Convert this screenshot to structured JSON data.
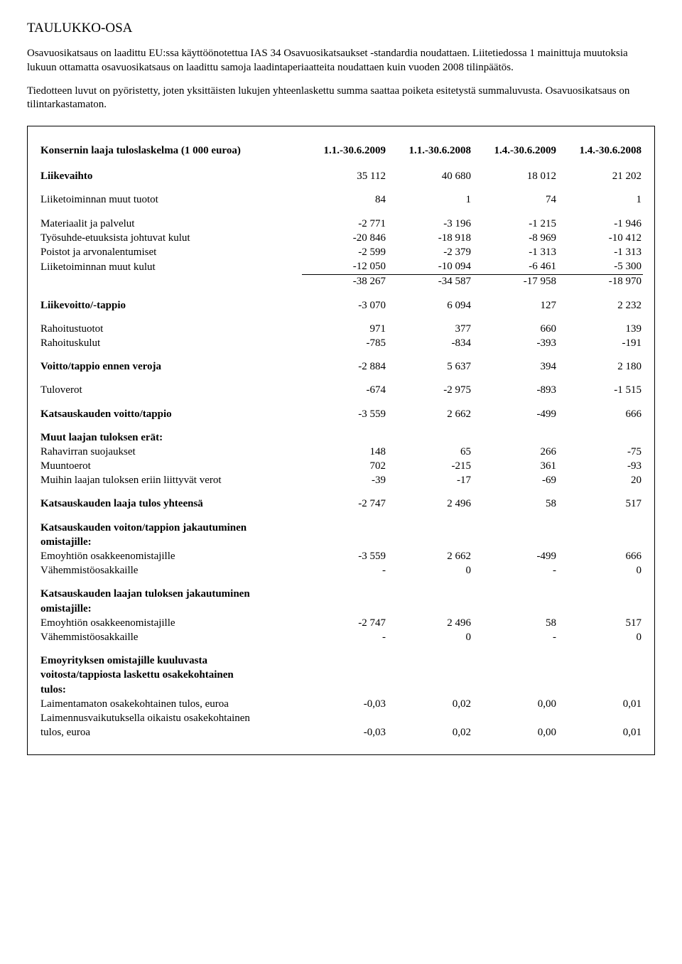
{
  "title": "TAULUKKO-OSA",
  "intro_p1": "Osavuosikatsaus on laadittu EU:ssa käyttöönotettua IAS 34 Osavuosikatsaukset -standardia noudattaen. Liitetiedossa 1 mainittuja muutoksia lukuun ottamatta osavuosikatsaus on laadittu samoja laadintaperiaatteita noudattaen kuin vuoden 2008 tilinpäätös.",
  "intro_p2": "Tiedotteen luvut on pyöristetty, joten yksittäisten lukujen yhteenlaskettu summa saattaa poiketa esitetystä summaluvusta. Osavuosikatsaus on tilintarkastamaton.",
  "header": {
    "label": "Konsernin laaja tuloslaskelma (1 000 euroa)",
    "c1": "1.1.-30.6.2009",
    "c2": "1.1.-30.6.2008",
    "c3": "1.4.-30.6.2009",
    "c4": "1.4.-30.6.2008"
  },
  "rows": {
    "liikevaihto": {
      "label": "Liikevaihto",
      "v": [
        "35 112",
        "40 680",
        "18 012",
        "21 202"
      ]
    },
    "muut_tuotot": {
      "label": "Liiketoiminnan muut tuotot",
      "v": [
        "84",
        "1",
        "74",
        "1"
      ]
    },
    "materiaalit": {
      "label": "Materiaalit ja palvelut",
      "v": [
        "-2 771",
        "-3 196",
        "-1 215",
        "-1 946"
      ]
    },
    "tyosuhde": {
      "label": "Työsuhde-etuuksista johtuvat kulut",
      "v": [
        "-20 846",
        "-18 918",
        "-8 969",
        "-10 412"
      ]
    },
    "poistot": {
      "label": "Poistot ja arvonalentumiset",
      "v": [
        "-2 599",
        "-2 379",
        "-1 313",
        "-1 313"
      ]
    },
    "muut_kulut": {
      "label": "Liiketoiminnan muut kulut",
      "v": [
        "-12 050",
        "-10 094",
        "-6 461",
        "-5 300"
      ]
    },
    "kulut_sum": {
      "label": "",
      "v": [
        "-38 267",
        "-34 587",
        "-17 958",
        "-18 970"
      ]
    },
    "liikevoitto": {
      "label": "Liikevoitto/-tappio",
      "v": [
        "-3 070",
        "6 094",
        "127",
        "2 232"
      ]
    },
    "rahoitustuotot": {
      "label": "Rahoitustuotot",
      "v": [
        "971",
        "377",
        "660",
        "139"
      ]
    },
    "rahoituskulut": {
      "label": "Rahoituskulut",
      "v": [
        "-785",
        "-834",
        "-393",
        "-191"
      ]
    },
    "voitto_ennen": {
      "label": "Voitto/tappio ennen veroja",
      "v": [
        "-2 884",
        "5 637",
        "394",
        "2 180"
      ]
    },
    "tuloverot": {
      "label": "Tuloverot",
      "v": [
        "-674",
        "-2 975",
        "-893",
        "-1 515"
      ]
    },
    "katsaus_voitto": {
      "label": "Katsauskauden voitto/tappio",
      "v": [
        "-3 559",
        "2 662",
        "-499",
        "666"
      ]
    },
    "muut_laajan_hdr": {
      "label": "Muut laajan tuloksen erät:"
    },
    "rahavirran": {
      "label": "Rahavirran suojaukset",
      "v": [
        "148",
        "65",
        "266",
        "-75"
      ]
    },
    "muuntoerot": {
      "label": "Muuntoerot",
      "v": [
        "702",
        "-215",
        "361",
        "-93"
      ]
    },
    "muihin_verot": {
      "label": "Muihin laajan tuloksen eriin liittyvät verot",
      "v": [
        "-39",
        "-17",
        "-69",
        "20"
      ]
    },
    "katsaus_laaja": {
      "label": "Katsauskauden laaja tulos yhteensä",
      "v": [
        "-2 747",
        "2 496",
        "58",
        "517"
      ]
    },
    "voiton_jak_hdr1": {
      "label": "Katsauskauden voiton/tappion jakautuminen"
    },
    "voiton_jak_hdr2": {
      "label": "omistajille:"
    },
    "emo1": {
      "label": "Emoyhtiön osakkeenomistajille",
      "v": [
        "-3 559",
        "2 662",
        "-499",
        "666"
      ]
    },
    "vah1": {
      "label": "Vähemmistöosakkaille",
      "v": [
        "-",
        "0",
        "-",
        "0"
      ]
    },
    "laajan_jak_hdr1": {
      "label": "Katsauskauden laajan tuloksen jakautuminen"
    },
    "laajan_jak_hdr2": {
      "label": "omistajille:"
    },
    "emo2": {
      "label": "Emoyhtiön osakkeenomistajille",
      "v": [
        "-2 747",
        "2 496",
        "58",
        "517"
      ]
    },
    "vah2": {
      "label": "Vähemmistöosakkaille",
      "v": [
        "-",
        "0",
        "-",
        "0"
      ]
    },
    "emoyritys_hdr1": {
      "label": "Emoyrityksen omistajille kuuluvasta"
    },
    "emoyritys_hdr2": {
      "label": "voitosta/tappiosta laskettu osakekohtainen"
    },
    "emoyritys_hdr3": {
      "label": "tulos:"
    },
    "laimentamaton": {
      "label": "Laimentamaton osakekohtainen tulos, euroa",
      "v": [
        "-0,03",
        "0,02",
        "0,00",
        "0,01"
      ]
    },
    "laimennus_hdr": {
      "label": "Laimennusvaikutuksella oikaistu osakekohtainen"
    },
    "laimennus": {
      "label": "tulos, euroa",
      "v": [
        "-0,03",
        "0,02",
        "0,00",
        "0,01"
      ]
    }
  }
}
